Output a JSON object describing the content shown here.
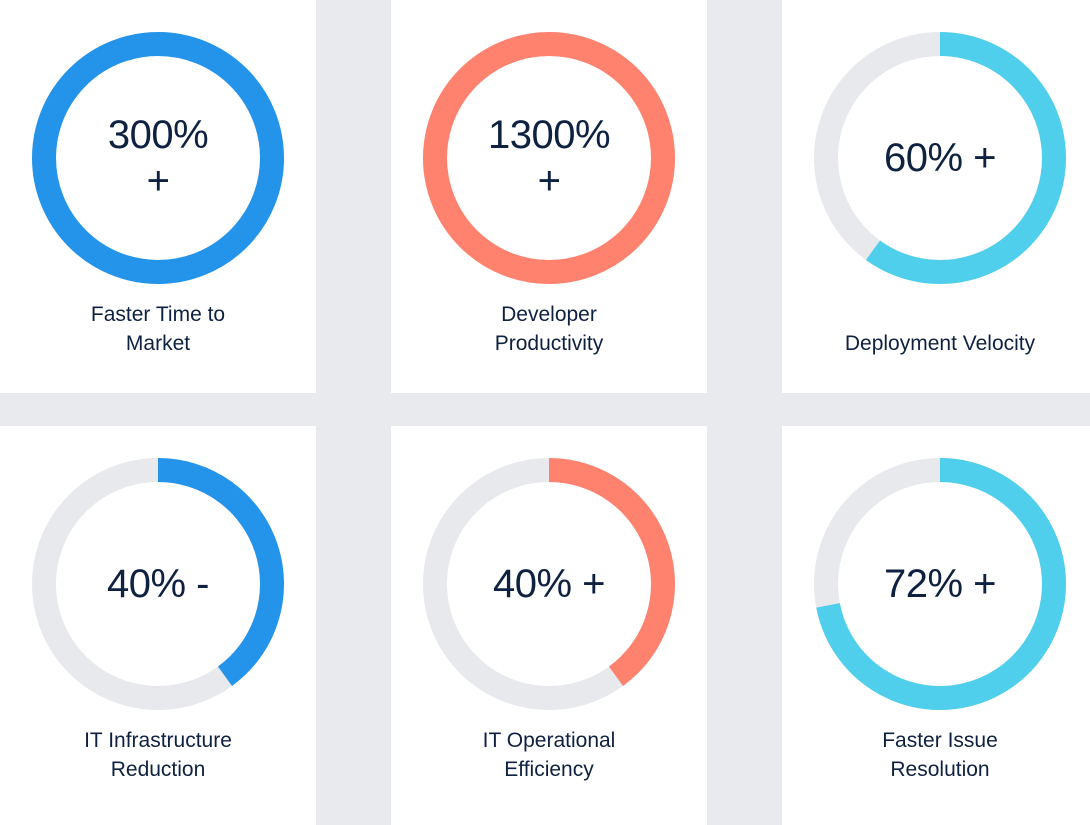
{
  "colors": {
    "blue": "#2394ea",
    "salmon": "#ff826e",
    "cyan": "#50cfec",
    "track": "#e8e9ed",
    "text": "#0f2140"
  },
  "chart_data": [
    {
      "type": "donut",
      "value_text": [
        "300%",
        "+"
      ],
      "fill_fraction": 1.0,
      "color": "blue",
      "label_lines": [
        "Faster Time to",
        "Market"
      ]
    },
    {
      "type": "donut",
      "value_text": [
        "1300%",
        "+"
      ],
      "fill_fraction": 1.0,
      "color": "salmon",
      "label_lines": [
        "Developer",
        "Productivity"
      ]
    },
    {
      "type": "donut",
      "value_text": [
        "60% +"
      ],
      "fill_fraction": 0.6,
      "color": "cyan",
      "label_lines": [
        "Deployment Velocity"
      ]
    },
    {
      "type": "donut",
      "value_text": [
        "40% -"
      ],
      "fill_fraction": 0.4,
      "color": "blue",
      "label_lines": [
        "IT Infrastructure",
        "Reduction"
      ]
    },
    {
      "type": "donut",
      "value_text": [
        "40% +"
      ],
      "fill_fraction": 0.4,
      "color": "salmon",
      "label_lines": [
        "IT Operational",
        "Efficiency"
      ]
    },
    {
      "type": "donut",
      "value_text": [
        "72% +"
      ],
      "fill_fraction": 0.72,
      "color": "cyan",
      "label_lines": [
        "Faster Issue",
        "Resolution"
      ]
    }
  ]
}
